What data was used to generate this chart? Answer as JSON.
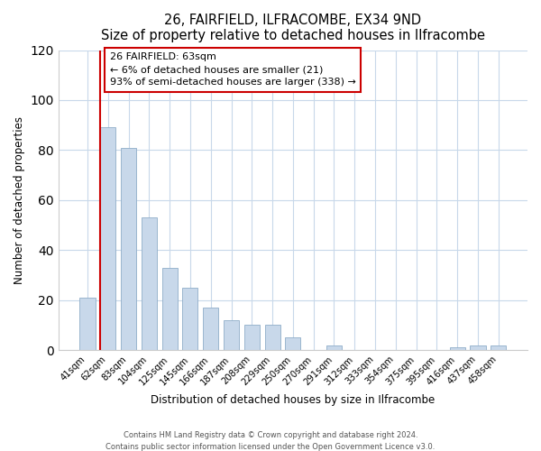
{
  "title": "26, FAIRFIELD, ILFRACOMBE, EX34 9ND",
  "subtitle": "Size of property relative to detached houses in Ilfracombe",
  "xlabel": "Distribution of detached houses by size in Ilfracombe",
  "ylabel": "Number of detached properties",
  "bar_labels": [
    "41sqm",
    "62sqm",
    "83sqm",
    "104sqm",
    "125sqm",
    "145sqm",
    "166sqm",
    "187sqm",
    "208sqm",
    "229sqm",
    "250sqm",
    "270sqm",
    "291sqm",
    "312sqm",
    "333sqm",
    "354sqm",
    "375sqm",
    "395sqm",
    "416sqm",
    "437sqm",
    "458sqm"
  ],
  "bar_values": [
    21,
    89,
    81,
    53,
    33,
    25,
    17,
    12,
    10,
    10,
    5,
    0,
    2,
    0,
    0,
    0,
    0,
    0,
    1,
    2,
    2
  ],
  "bar_color": "#c8d8ea",
  "bar_edge_color": "#8fadc8",
  "vline_color": "#cc0000",
  "ylim": [
    0,
    120
  ],
  "yticks": [
    0,
    20,
    40,
    60,
    80,
    100,
    120
  ],
  "annotation_title": "26 FAIRFIELD: 63sqm",
  "annotation_line1": "← 6% of detached houses are smaller (21)",
  "annotation_line2": "93% of semi-detached houses are larger (338) →",
  "annotation_box_color": "#ffffff",
  "annotation_box_edge": "#cc0000",
  "grid_color": "#c8d8ea",
  "footer1": "Contains HM Land Registry data © Crown copyright and database right 2024.",
  "footer2": "Contains public sector information licensed under the Open Government Licence v3.0."
}
